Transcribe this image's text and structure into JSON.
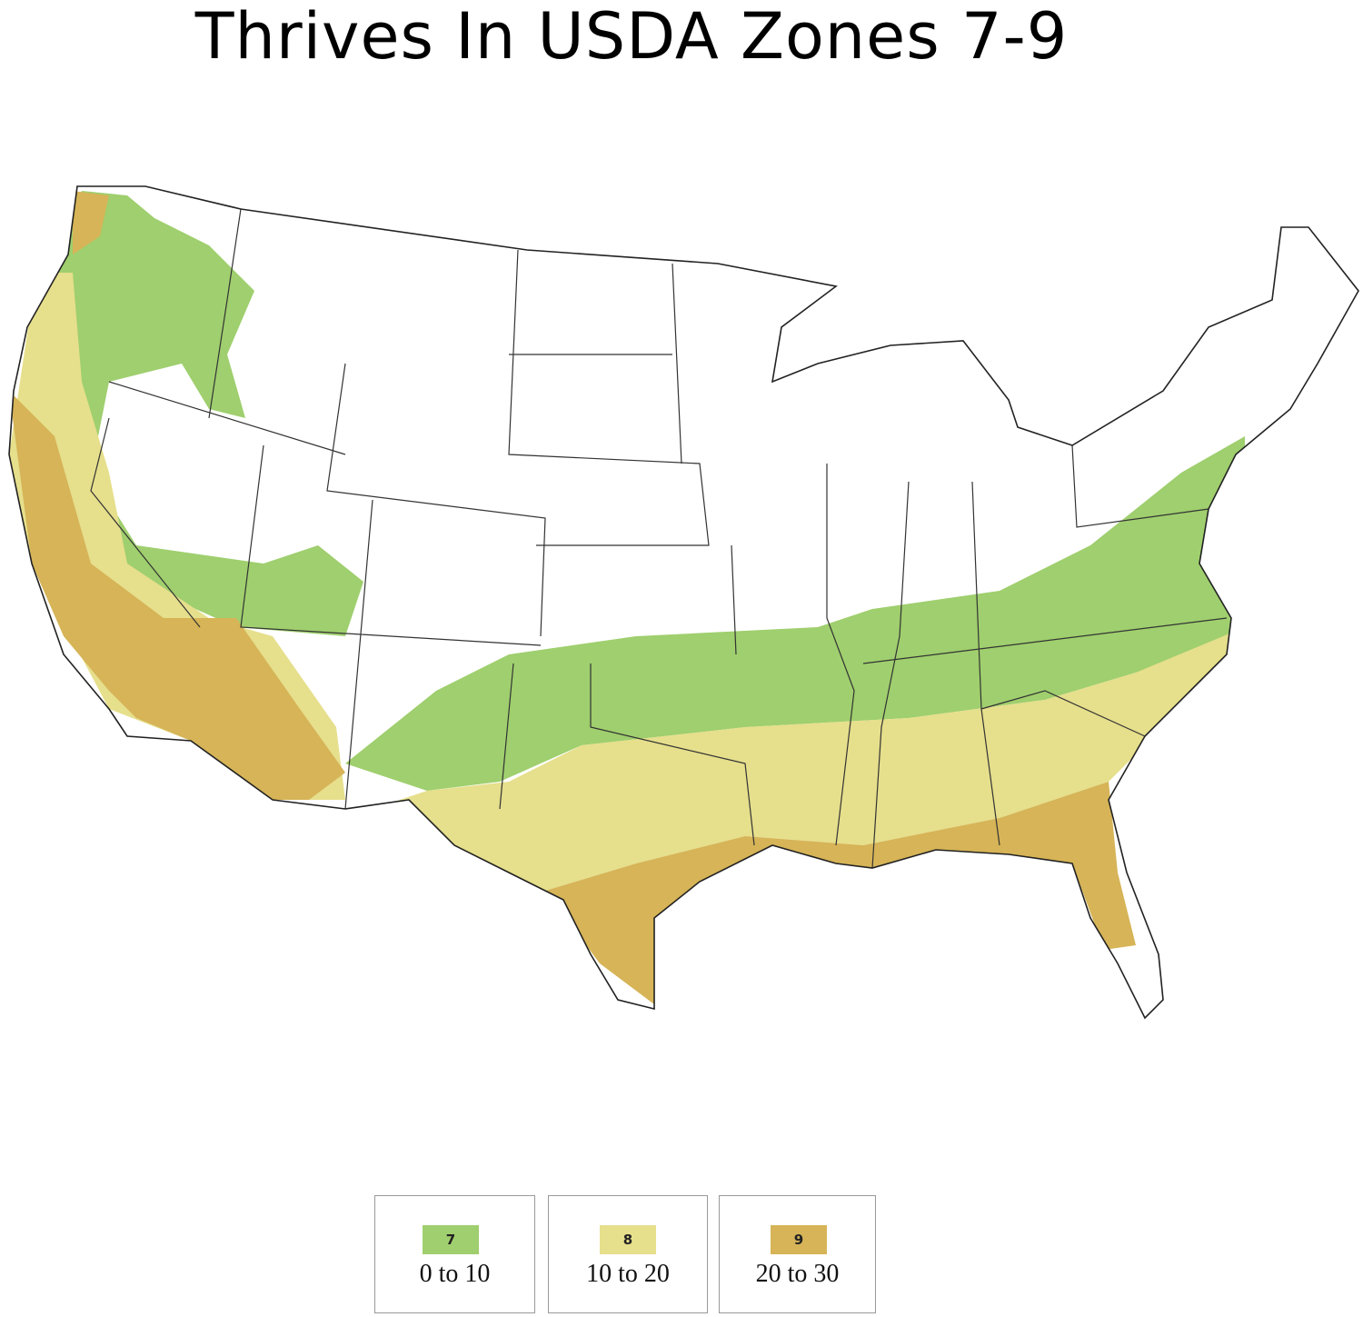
{
  "title": "Thrives In USDA Zones 7-9",
  "legend": [
    {
      "zone": "7",
      "range": "0 to 10",
      "color": "#9fcf6e"
    },
    {
      "zone": "8",
      "range": "10 to 20",
      "color": "#e6df8c"
    },
    {
      "zone": "9",
      "range": "20 to 30",
      "color": "#d6b457"
    }
  ]
}
